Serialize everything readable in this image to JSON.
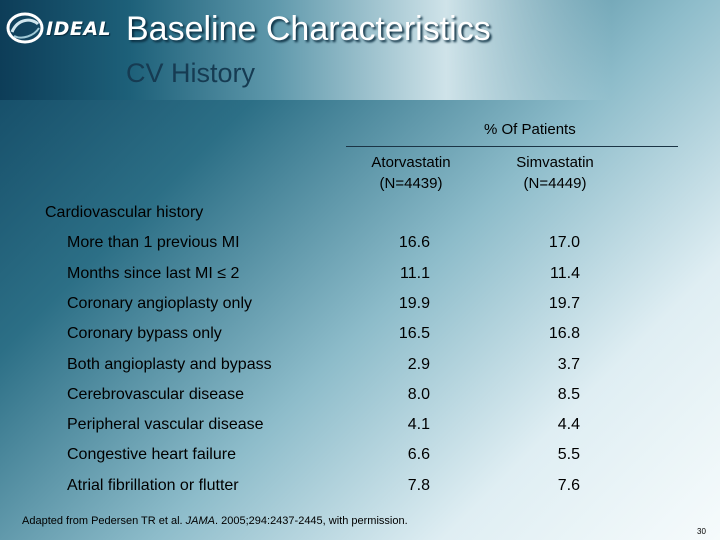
{
  "logo": {
    "text": "IDEAL",
    "icon": "swirl-logo-icon"
  },
  "title": "Baseline Characteristics",
  "subtitle": "CV History",
  "table": {
    "group_header": "% Of Patients",
    "columns": [
      {
        "line1": "Atorvastatin",
        "line2": "(N=4439)"
      },
      {
        "line1": "Simvastatin",
        "line2": "(N=4449)"
      }
    ],
    "section_label": "Cardiovascular history",
    "rows": [
      {
        "label": "More than 1 previous MI",
        "atorvastatin": "16.6",
        "simvastatin": "17.0"
      },
      {
        "label": "Months since last MI ≤ 2",
        "atorvastatin": "11.1",
        "simvastatin": "11.4"
      },
      {
        "label": "Coronary angioplasty only",
        "atorvastatin": "19.9",
        "simvastatin": "19.7"
      },
      {
        "label": "Coronary bypass only",
        "atorvastatin": "16.5",
        "simvastatin": "16.8"
      },
      {
        "label": "Both angioplasty and bypass",
        "atorvastatin": "2.9",
        "simvastatin": "3.7"
      },
      {
        "label": "Cerebrovascular disease",
        "atorvastatin": "8.0",
        "simvastatin": "8.5"
      },
      {
        "label": "Peripheral vascular disease",
        "atorvastatin": "4.1",
        "simvastatin": "4.4"
      },
      {
        "label": "Congestive heart failure",
        "atorvastatin": "6.6",
        "simvastatin": "5.5"
      },
      {
        "label": "Atrial fibrillation or flutter",
        "atorvastatin": "7.8",
        "simvastatin": "7.6"
      }
    ]
  },
  "footnote": {
    "pre": "Adapted from Pedersen TR et al. ",
    "journal": "JAMA",
    "post": ". 2005;294:2437-2445, with permission."
  },
  "page_number": "30"
}
